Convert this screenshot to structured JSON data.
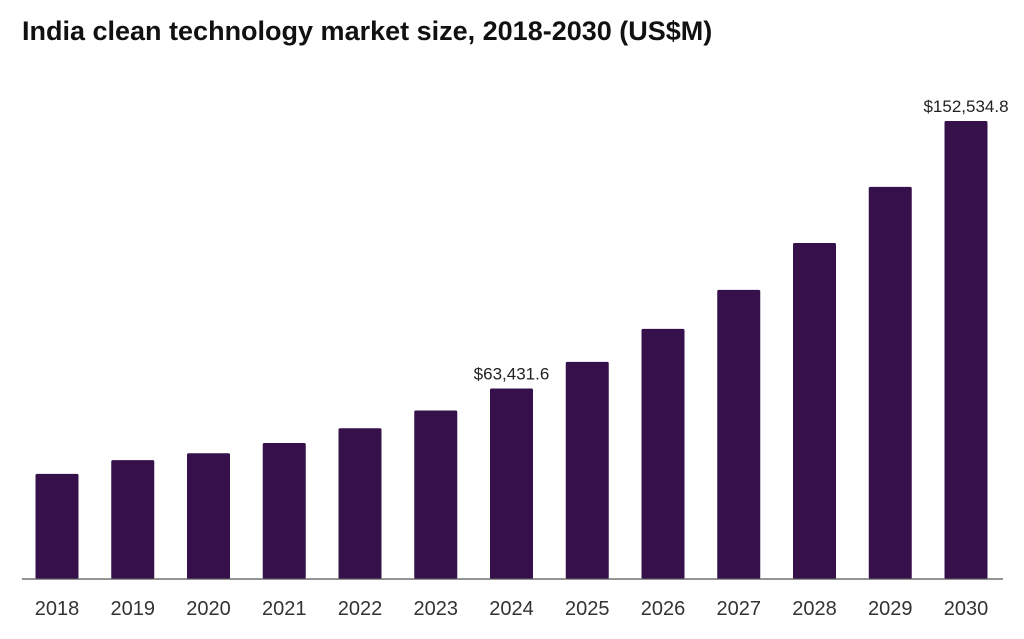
{
  "chart_data": {
    "type": "bar",
    "title": "India clean technology market size, 2018-2030 (US$M)",
    "xlabel": "",
    "ylabel": "",
    "categories": [
      "2018",
      "2019",
      "2020",
      "2021",
      "2022",
      "2023",
      "2024",
      "2025",
      "2026",
      "2027",
      "2028",
      "2029",
      "2030"
    ],
    "values": [
      35000,
      39600,
      41900,
      45300,
      50200,
      56100,
      63431.6,
      72300,
      83300,
      96300,
      111900,
      130600,
      152534.8
    ],
    "data_labels": [
      {
        "category": "2024",
        "text": "$63,431.6"
      },
      {
        "category": "2030",
        "text": "$152,534.8"
      }
    ],
    "ylim": [
      0,
      152534.8
    ],
    "grid": false,
    "legend": "none",
    "bar_color": "#35104a"
  }
}
